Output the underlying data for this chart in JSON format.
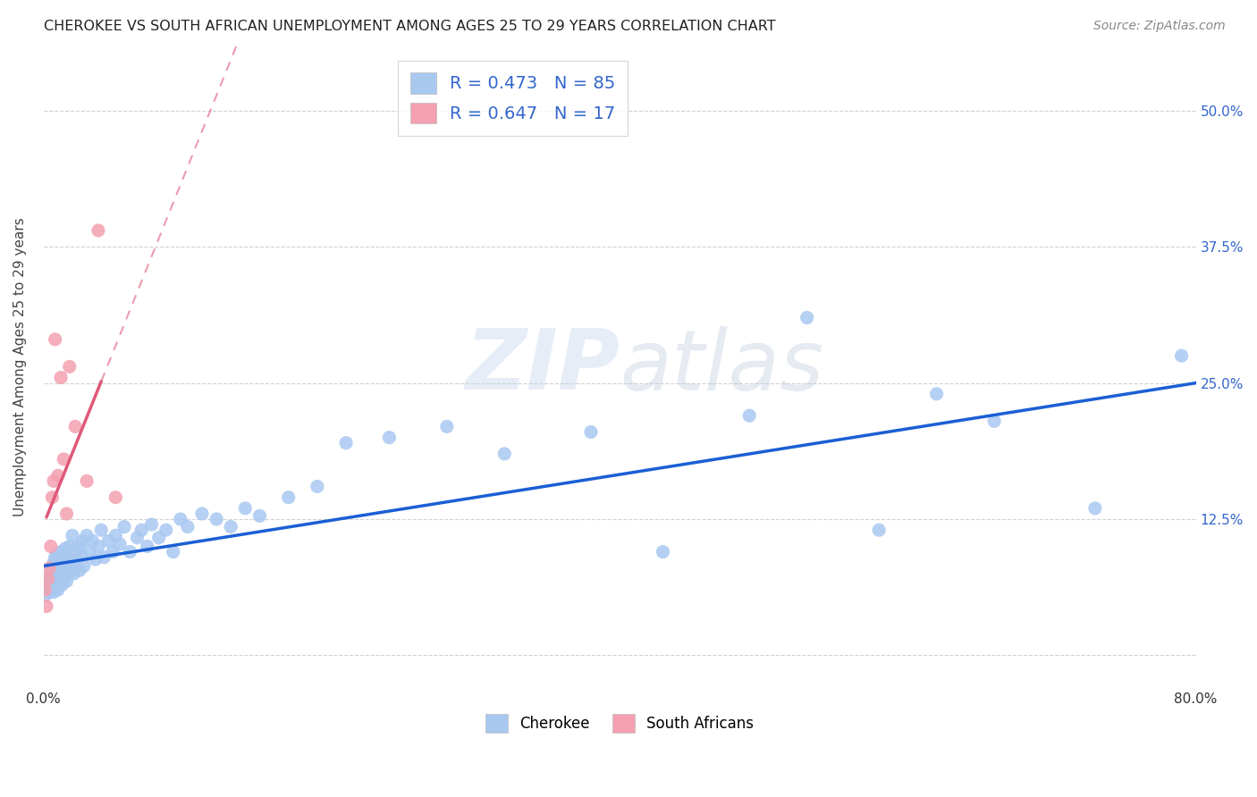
{
  "title": "CHEROKEE VS SOUTH AFRICAN UNEMPLOYMENT AMONG AGES 25 TO 29 YEARS CORRELATION CHART",
  "source": "Source: ZipAtlas.com",
  "ylabel": "Unemployment Among Ages 25 to 29 years",
  "xlim": [
    0.0,
    0.8
  ],
  "ylim": [
    -0.03,
    0.56
  ],
  "xticks": [
    0.0,
    0.1,
    0.2,
    0.3,
    0.4,
    0.5,
    0.6,
    0.7,
    0.8
  ],
  "xticklabels": [
    "0.0%",
    "",
    "",
    "",
    "",
    "",
    "",
    "",
    "80.0%"
  ],
  "ytick_positions": [
    0.0,
    0.125,
    0.25,
    0.375,
    0.5
  ],
  "yticklabels_right": [
    "",
    "12.5%",
    "25.0%",
    "37.5%",
    "50.0%"
  ],
  "cherokee_R": 0.473,
  "cherokee_N": 85,
  "sa_R": 0.647,
  "sa_N": 17,
  "cherokee_color": "#a8c8f0",
  "sa_color": "#f4a0b0",
  "trendline_cherokee_color": "#1a5fd4",
  "trendline_sa_color": "#e05878",
  "watermark": "ZIPatlas",
  "cherokee_x": [
    0.001,
    0.002,
    0.003,
    0.004,
    0.005,
    0.005,
    0.006,
    0.006,
    0.007,
    0.007,
    0.008,
    0.008,
    0.009,
    0.009,
    0.01,
    0.01,
    0.01,
    0.011,
    0.011,
    0.012,
    0.012,
    0.013,
    0.013,
    0.014,
    0.014,
    0.015,
    0.015,
    0.016,
    0.016,
    0.017,
    0.018,
    0.018,
    0.019,
    0.02,
    0.02,
    0.021,
    0.022,
    0.023,
    0.024,
    0.025,
    0.026,
    0.027,
    0.028,
    0.03,
    0.032,
    0.034,
    0.036,
    0.038,
    0.04,
    0.042,
    0.045,
    0.048,
    0.05,
    0.053,
    0.056,
    0.06,
    0.065,
    0.068,
    0.072,
    0.075,
    0.08,
    0.085,
    0.09,
    0.095,
    0.1,
    0.11,
    0.12,
    0.13,
    0.14,
    0.15,
    0.17,
    0.19,
    0.21,
    0.24,
    0.28,
    0.32,
    0.38,
    0.43,
    0.49,
    0.53,
    0.58,
    0.62,
    0.66,
    0.73,
    0.79
  ],
  "cherokee_y": [
    0.055,
    0.065,
    0.07,
    0.058,
    0.068,
    0.075,
    0.062,
    0.08,
    0.058,
    0.085,
    0.07,
    0.09,
    0.065,
    0.082,
    0.06,
    0.075,
    0.092,
    0.068,
    0.088,
    0.072,
    0.095,
    0.065,
    0.085,
    0.07,
    0.092,
    0.078,
    0.098,
    0.068,
    0.09,
    0.075,
    0.085,
    0.1,
    0.078,
    0.082,
    0.11,
    0.075,
    0.095,
    0.088,
    0.1,
    0.078,
    0.092,
    0.105,
    0.082,
    0.11,
    0.095,
    0.105,
    0.088,
    0.1,
    0.115,
    0.09,
    0.105,
    0.095,
    0.11,
    0.102,
    0.118,
    0.095,
    0.108,
    0.115,
    0.1,
    0.12,
    0.108,
    0.115,
    0.095,
    0.125,
    0.118,
    0.13,
    0.125,
    0.118,
    0.135,
    0.128,
    0.145,
    0.155,
    0.195,
    0.2,
    0.21,
    0.185,
    0.205,
    0.095,
    0.22,
    0.31,
    0.115,
    0.24,
    0.215,
    0.135,
    0.275
  ],
  "sa_x": [
    0.001,
    0.002,
    0.003,
    0.004,
    0.005,
    0.006,
    0.007,
    0.008,
    0.01,
    0.012,
    0.014,
    0.016,
    0.018,
    0.022,
    0.03,
    0.038,
    0.05
  ],
  "sa_y": [
    0.06,
    0.045,
    0.07,
    0.08,
    0.1,
    0.145,
    0.16,
    0.29,
    0.165,
    0.255,
    0.18,
    0.13,
    0.265,
    0.21,
    0.16,
    0.39,
    0.145
  ],
  "trendline_cherokee_x0": 0.0,
  "trendline_cherokee_x1": 0.8,
  "trendline_cherokee_y0": 0.082,
  "trendline_cherokee_y1": 0.25,
  "trendline_sa_solid_x0": 0.002,
  "trendline_sa_solid_x1": 0.04,
  "trendline_sa_dashed_x0": 0.04,
  "trendline_sa_dashed_x1": 0.26
}
